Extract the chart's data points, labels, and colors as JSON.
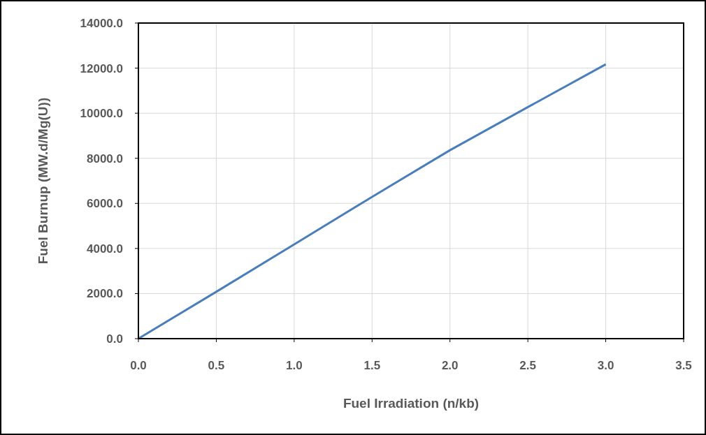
{
  "chart_data": {
    "type": "line",
    "xlabel": "Fuel Irradiation (n/kb)",
    "ylabel": "Fuel Burnup (MW.d/Mg(U))",
    "x": [
      0,
      0.5,
      1,
      1.5,
      2,
      2.5,
      3
    ],
    "series": [
      {
        "color": "#4a7ebb",
        "values": [
          0,
          2080,
          4180,
          6290,
          8360,
          10270,
          12170
        ]
      }
    ],
    "xlim": [
      0,
      3.5
    ],
    "ylim": [
      0,
      14000
    ],
    "xticks": [
      {
        "value": 0,
        "label": "0.0"
      },
      {
        "value": 0.5,
        "label": "0.5"
      },
      {
        "value": 1,
        "label": "1.0"
      },
      {
        "value": 1.5,
        "label": "1.5"
      },
      {
        "value": 2,
        "label": "2.0"
      },
      {
        "value": 2.5,
        "label": "2.5"
      },
      {
        "value": 3,
        "label": "3.0"
      },
      {
        "value": 3.5,
        "label": "3.5"
      }
    ],
    "yticks": [
      {
        "value": 0,
        "label": "0.0"
      },
      {
        "value": 2000,
        "label": "2000.0"
      },
      {
        "value": 4000,
        "label": "4000.0"
      },
      {
        "value": 6000,
        "label": "6000.0"
      },
      {
        "value": 8000,
        "label": "8000.0"
      },
      {
        "value": 10000,
        "label": "10000.0"
      },
      {
        "value": 12000,
        "label": "12000.0"
      },
      {
        "value": 14000,
        "label": "14000.0"
      }
    ],
    "grid": true,
    "marker": "none",
    "line_style": "solid"
  }
}
